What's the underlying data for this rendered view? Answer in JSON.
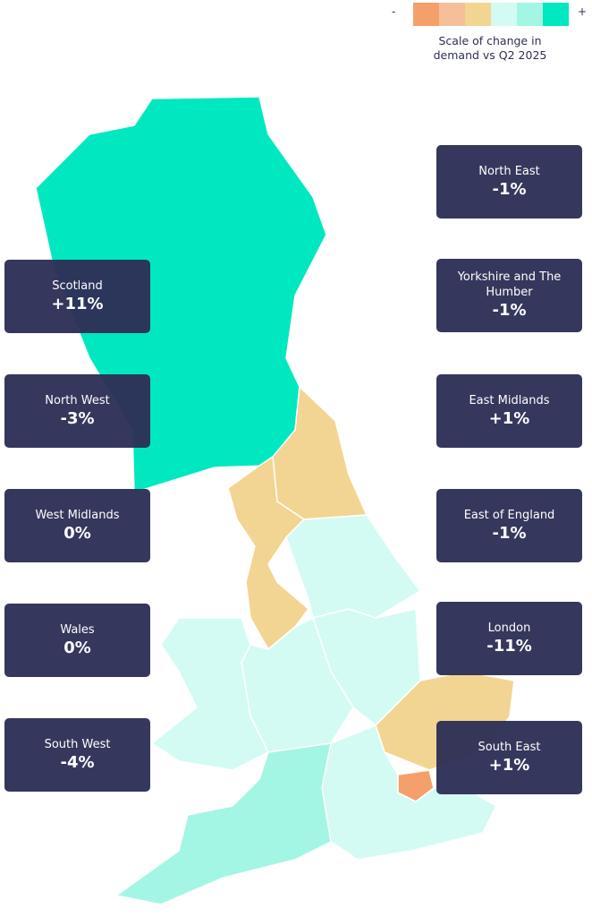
{
  "legend": {
    "minus": "-",
    "plus": "+",
    "colors": [
      "#f4a06b",
      "#f6bf9a",
      "#f2d592",
      "#d4fbf3",
      "#a3f6e3",
      "#00e8c0"
    ],
    "caption": [
      "Scale of change in",
      "demand vs Q2 2025"
    ]
  },
  "regions": [
    {
      "name": "Scotland",
      "change": "+11%"
    },
    {
      "name": "North West",
      "change": "-3%"
    },
    {
      "name": "West Midlands",
      "change": "0%"
    },
    {
      "name": "Wales",
      "change": "0%"
    },
    {
      "name": "South West",
      "change": "-4%"
    },
    {
      "name": "North East",
      "change": "-1%"
    },
    {
      "name": "Yorkshire and The Humber",
      "change": "-1%"
    },
    {
      "name": "East Midlands",
      "change": "+1%"
    },
    {
      "name": "East of England",
      "change": "-1%"
    },
    {
      "name": "London",
      "change": "-11%"
    },
    {
      "name": "South East",
      "change": "+1%"
    }
  ]
}
